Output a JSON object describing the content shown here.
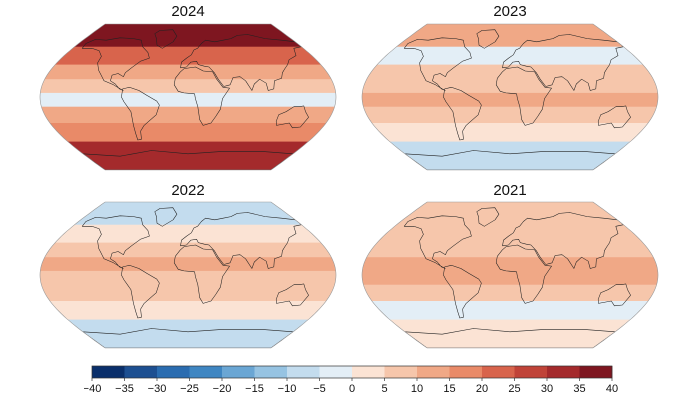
{
  "maps": [
    {
      "title": "2024",
      "anomaly": {
        "arctic": 38,
        "north_mid": 20,
        "north_sub": 12,
        "tropics": 8,
        "equator_band": -2,
        "south_sub": 10,
        "south_mid": 18,
        "antarctic": 32
      }
    },
    {
      "title": "2023",
      "anomaly": {
        "arctic": 10,
        "north_mid": -4,
        "north_sub": 6,
        "tropics": 6,
        "equator_band": 12,
        "south_sub": 8,
        "south_mid": 4,
        "antarctic": -8
      }
    },
    {
      "title": "2022",
      "anomaly": {
        "arctic": -8,
        "north_mid": 4,
        "north_sub": 6,
        "tropics": 10,
        "equator_band": 8,
        "south_sub": 6,
        "south_mid": 2,
        "antarctic": -6
      }
    },
    {
      "title": "2021",
      "anomaly": {
        "arctic": 6,
        "north_mid": 8,
        "north_sub": 6,
        "tropics": 12,
        "equator_band": 10,
        "south_sub": 8,
        "south_mid": -2,
        "antarctic": 4
      }
    }
  ],
  "colorbar": {
    "ticks": [
      "−40",
      "−35",
      "−30",
      "−25",
      "−20",
      "−15",
      "−10",
      "−5",
      "0",
      "5",
      "10",
      "15",
      "20",
      "25",
      "30",
      "35",
      "40"
    ],
    "colors": [
      "#0a2f6b",
      "#1d4f91",
      "#2a6cb0",
      "#3f86c2",
      "#6aa6d4",
      "#96c3e2",
      "#c3dcee",
      "#e3eef6",
      "#fbe3d4",
      "#f6c6ab",
      "#f0a886",
      "#e98a68",
      "#d8644c",
      "#c04338",
      "#a42a2c",
      "#7e1620"
    ]
  }
}
